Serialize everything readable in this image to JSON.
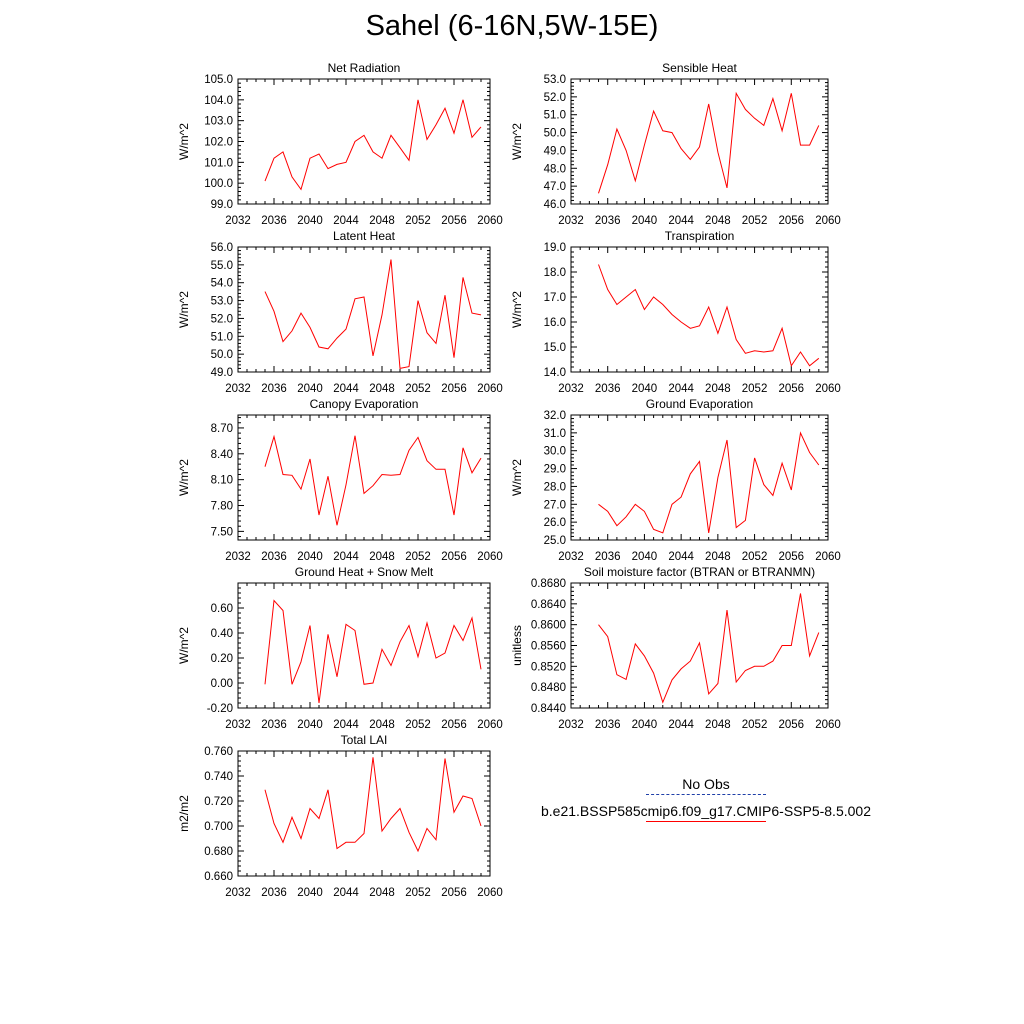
{
  "title": "Sahel (6-16N,5W-15E)",
  "line_color": "#ff0000",
  "obs_line_color": "#1f3fa8",
  "legend": {
    "obs_label": "No Obs",
    "model_label": "b.e21.BSSP585cmip6.f09_g17.CMIP6-SSP5-8.5.002"
  },
  "chart_data": [
    {
      "type": "line",
      "title": "Net Radiation",
      "ylabel": "W/m^2",
      "xlim": [
        2032,
        2060
      ],
      "xticks": [
        "2032",
        "2036",
        "2040",
        "2044",
        "2048",
        "2052",
        "2056",
        "2060"
      ],
      "ylim": [
        99.0,
        105.0
      ],
      "yticks": [
        "99.0",
        "100.0",
        "101.0",
        "102.0",
        "103.0",
        "104.0",
        "105.0"
      ],
      "x": [
        2035,
        2036,
        2037,
        2038,
        2039,
        2040,
        2041,
        2042,
        2043,
        2044,
        2045,
        2046,
        2047,
        2048,
        2049,
        2050,
        2051,
        2052,
        2053,
        2054,
        2055,
        2056,
        2057,
        2058,
        2059
      ],
      "values": [
        100.1,
        101.2,
        101.5,
        100.3,
        99.7,
        101.2,
        101.4,
        100.7,
        100.9,
        101.0,
        102.0,
        102.3,
        101.5,
        101.2,
        102.3,
        101.7,
        101.1,
        104.0,
        102.1,
        102.8,
        103.6,
        102.4,
        104.0,
        102.2,
        102.7
      ]
    },
    {
      "type": "line",
      "title": "Sensible Heat",
      "ylabel": "W/m^2",
      "xlim": [
        2032,
        2060
      ],
      "xticks": [
        "2032",
        "2036",
        "2040",
        "2044",
        "2048",
        "2052",
        "2056",
        "2060"
      ],
      "ylim": [
        46.0,
        53.0
      ],
      "yticks": [
        "46.0",
        "47.0",
        "48.0",
        "49.0",
        "50.0",
        "51.0",
        "52.0",
        "53.0"
      ],
      "x": [
        2035,
        2036,
        2037,
        2038,
        2039,
        2040,
        2041,
        2042,
        2043,
        2044,
        2045,
        2046,
        2047,
        2048,
        2049,
        2050,
        2051,
        2052,
        2053,
        2054,
        2055,
        2056,
        2057,
        2058,
        2059
      ],
      "values": [
        46.6,
        48.2,
        50.2,
        49.0,
        47.3,
        49.3,
        51.2,
        50.1,
        50.0,
        49.1,
        48.5,
        49.2,
        51.6,
        48.9,
        46.9,
        52.2,
        51.3,
        50.8,
        50.4,
        51.9,
        50.1,
        52.2,
        49.3,
        49.3,
        50.4
      ]
    },
    {
      "type": "line",
      "title": "Latent Heat",
      "ylabel": "W/m^2",
      "xlim": [
        2032,
        2060
      ],
      "xticks": [
        "2032",
        "2036",
        "2040",
        "2044",
        "2048",
        "2052",
        "2056",
        "2060"
      ],
      "ylim": [
        49.0,
        56.0
      ],
      "yticks": [
        "49.0",
        "50.0",
        "51.0",
        "52.0",
        "53.0",
        "54.0",
        "55.0",
        "56.0"
      ],
      "x": [
        2035,
        2036,
        2037,
        2038,
        2039,
        2040,
        2041,
        2042,
        2043,
        2044,
        2045,
        2046,
        2047,
        2048,
        2049,
        2050,
        2051,
        2052,
        2053,
        2054,
        2055,
        2056,
        2057,
        2058,
        2059
      ],
      "values": [
        53.5,
        52.4,
        50.7,
        51.3,
        52.3,
        51.5,
        50.4,
        50.3,
        50.9,
        51.4,
        53.1,
        53.2,
        49.9,
        52.2,
        55.3,
        49.2,
        49.3,
        53.0,
        51.2,
        50.6,
        53.3,
        49.8,
        54.3,
        52.3,
        52.2
      ]
    },
    {
      "type": "line",
      "title": "Transpiration",
      "ylabel": "W/m^2",
      "xlim": [
        2032,
        2060
      ],
      "xticks": [
        "2032",
        "2036",
        "2040",
        "2044",
        "2048",
        "2052",
        "2056",
        "2060"
      ],
      "ylim": [
        14.0,
        19.0
      ],
      "yticks": [
        "14.0",
        "15.0",
        "16.0",
        "17.0",
        "18.0",
        "19.0"
      ],
      "x": [
        2035,
        2036,
        2037,
        2038,
        2039,
        2040,
        2041,
        2042,
        2043,
        2044,
        2045,
        2046,
        2047,
        2048,
        2049,
        2050,
        2051,
        2052,
        2053,
        2054,
        2055,
        2056,
        2057,
        2058,
        2059
      ],
      "values": [
        18.3,
        17.3,
        16.7,
        17.0,
        17.3,
        16.5,
        17.0,
        16.7,
        16.3,
        16.0,
        15.75,
        15.85,
        16.6,
        15.55,
        16.6,
        15.3,
        14.75,
        14.85,
        14.8,
        14.85,
        15.75,
        14.25,
        14.8,
        14.25,
        14.55
      ]
    },
    {
      "type": "line",
      "title": "Canopy Evaporation",
      "ylabel": "W/m^2",
      "xlim": [
        2032,
        2060
      ],
      "xticks": [
        "2032",
        "2036",
        "2040",
        "2044",
        "2048",
        "2052",
        "2056",
        "2060"
      ],
      "ylim": [
        7.4,
        8.85
      ],
      "yticks": [
        "7.50",
        "7.80",
        "8.10",
        "8.40",
        "8.70"
      ],
      "x": [
        2035,
        2036,
        2037,
        2038,
        2039,
        2040,
        2041,
        2042,
        2043,
        2044,
        2045,
        2046,
        2047,
        2048,
        2049,
        2050,
        2051,
        2052,
        2053,
        2054,
        2055,
        2056,
        2057,
        2058,
        2059
      ],
      "values": [
        8.25,
        8.6,
        8.16,
        8.15,
        7.99,
        8.34,
        7.69,
        8.14,
        7.57,
        8.04,
        8.61,
        7.94,
        8.03,
        8.16,
        8.15,
        8.16,
        8.44,
        8.59,
        8.32,
        8.22,
        8.22,
        7.69,
        8.47,
        8.18,
        8.35
      ]
    },
    {
      "type": "line",
      "title": "Ground Evaporation",
      "ylabel": "W/m^2",
      "xlim": [
        2032,
        2060
      ],
      "xticks": [
        "2032",
        "2036",
        "2040",
        "2044",
        "2048",
        "2052",
        "2056",
        "2060"
      ],
      "ylim": [
        25.0,
        32.0
      ],
      "yticks": [
        "25.0",
        "26.0",
        "27.0",
        "28.0",
        "29.0",
        "30.0",
        "31.0",
        "32.0"
      ],
      "x": [
        2035,
        2036,
        2037,
        2038,
        2039,
        2040,
        2041,
        2042,
        2043,
        2044,
        2045,
        2046,
        2047,
        2048,
        2049,
        2050,
        2051,
        2052,
        2053,
        2054,
        2055,
        2056,
        2057,
        2058,
        2059
      ],
      "values": [
        27.0,
        26.6,
        25.8,
        26.3,
        27.0,
        26.6,
        25.6,
        25.4,
        27.0,
        27.4,
        28.7,
        29.4,
        25.4,
        28.5,
        30.6,
        25.7,
        26.1,
        29.6,
        28.1,
        27.5,
        29.3,
        27.8,
        31.0,
        29.9,
        29.2
      ]
    },
    {
      "type": "line",
      "title": "Ground Heat + Snow Melt",
      "ylabel": "W/m^2",
      "xlim": [
        2032,
        2060
      ],
      "xticks": [
        "2032",
        "2036",
        "2040",
        "2044",
        "2048",
        "2052",
        "2056",
        "2060"
      ],
      "ylim": [
        -0.2,
        0.8
      ],
      "yticks": [
        "-0.20",
        "0.00",
        "0.20",
        "0.40",
        "0.60"
      ],
      "x": [
        2035,
        2036,
        2037,
        2038,
        2039,
        2040,
        2041,
        2042,
        2043,
        2044,
        2045,
        2046,
        2047,
        2048,
        2049,
        2050,
        2051,
        2052,
        2053,
        2054,
        2055,
        2056,
        2057,
        2058,
        2059
      ],
      "values": [
        -0.01,
        0.66,
        0.58,
        -0.01,
        0.17,
        0.46,
        -0.16,
        0.39,
        0.05,
        0.47,
        0.42,
        -0.01,
        0.0,
        0.27,
        0.14,
        0.33,
        0.46,
        0.21,
        0.48,
        0.2,
        0.24,
        0.46,
        0.34,
        0.52,
        0.11
      ]
    },
    {
      "type": "line",
      "title": "Soil moisture factor (BTRAN or BTRANMN)",
      "ylabel": "unitless",
      "xlim": [
        2032,
        2060
      ],
      "xticks": [
        "2032",
        "2036",
        "2040",
        "2044",
        "2048",
        "2052",
        "2056",
        "2060"
      ],
      "ylim": [
        0.844,
        0.868
      ],
      "yticks": [
        "0.8440",
        "0.8480",
        "0.8520",
        "0.8560",
        "0.8600",
        "0.8640",
        "0.8680"
      ],
      "x": [
        2035,
        2036,
        2037,
        2038,
        2039,
        2040,
        2041,
        2042,
        2043,
        2044,
        2045,
        2046,
        2047,
        2048,
        2049,
        2050,
        2051,
        2052,
        2053,
        2054,
        2055,
        2056,
        2057,
        2058,
        2059
      ],
      "values": [
        0.86,
        0.8577,
        0.8504,
        0.8495,
        0.8563,
        0.854,
        0.8507,
        0.8451,
        0.8494,
        0.8515,
        0.853,
        0.8565,
        0.8467,
        0.8487,
        0.8628,
        0.849,
        0.8512,
        0.852,
        0.852,
        0.853,
        0.856,
        0.856,
        0.866,
        0.854,
        0.8585
      ]
    },
    {
      "type": "line",
      "title": "Total LAI",
      "ylabel": "m2/m2",
      "xlim": [
        2032,
        2060
      ],
      "xticks": [
        "2032",
        "2036",
        "2040",
        "2044",
        "2048",
        "2052",
        "2056",
        "2060"
      ],
      "ylim": [
        0.66,
        0.76
      ],
      "yticks": [
        "0.660",
        "0.680",
        "0.700",
        "0.720",
        "0.740",
        "0.760"
      ],
      "x": [
        2035,
        2036,
        2037,
        2038,
        2039,
        2040,
        2041,
        2042,
        2043,
        2044,
        2045,
        2046,
        2047,
        2048,
        2049,
        2050,
        2051,
        2052,
        2053,
        2054,
        2055,
        2056,
        2057,
        2058,
        2059
      ],
      "values": [
        0.729,
        0.702,
        0.687,
        0.707,
        0.69,
        0.714,
        0.706,
        0.729,
        0.682,
        0.687,
        0.687,
        0.694,
        0.755,
        0.696,
        0.706,
        0.714,
        0.695,
        0.68,
        0.698,
        0.689,
        0.754,
        0.711,
        0.724,
        0.722,
        0.7
      ]
    }
  ]
}
